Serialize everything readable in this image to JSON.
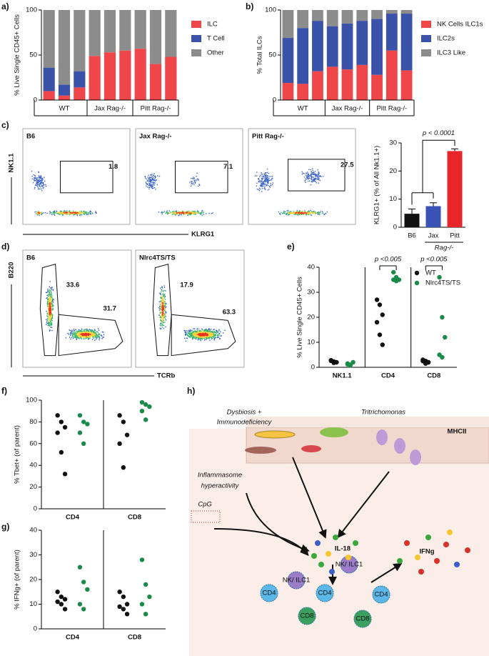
{
  "chart_data": [
    {
      "type": "stacked",
      "panel_label": "a)",
      "ylabel": "% Live Single CD45+ Cells",
      "ylim": [
        0,
        100
      ],
      "yticks": [
        0,
        50,
        100
      ],
      "categories": [
        null,
        null,
        null,
        null,
        null,
        null,
        null,
        null,
        null
      ],
      "groups": [
        "WT",
        "Jax Rag-/-",
        "Pitt Rag-/-"
      ],
      "series": [
        {
          "name": "ILC",
          "color": "#ef4649",
          "values": [
            10,
            5,
            14,
            49,
            53,
            55,
            57,
            40,
            48
          ]
        },
        {
          "name": "T Cell",
          "color": "#3a52a8",
          "values": [
            26,
            12,
            18,
            0,
            0,
            0,
            0,
            0,
            0
          ]
        },
        {
          "name": "Other",
          "color": "#8c8c8c",
          "values": [
            64,
            83,
            68,
            51,
            47,
            45,
            43,
            60,
            52
          ]
        }
      ]
    },
    {
      "type": "stacked",
      "panel_label": "b)",
      "ylabel": "% Total ILCs",
      "ylim": [
        0,
        100
      ],
      "yticks": [
        0,
        50,
        100
      ],
      "categories": [
        null,
        null,
        null,
        null,
        null,
        null,
        null,
        null,
        null
      ],
      "groups": [
        "WT",
        "Jax Rag-/-",
        "Pitt Rag-/-"
      ],
      "series": [
        {
          "name": "NK Cells ILC1s",
          "color": "#ef4649",
          "values": [
            19,
            18,
            32,
            37,
            34,
            39,
            28,
            55,
            33
          ]
        },
        {
          "name": "ILC2s",
          "color": "#3a52a8",
          "values": [
            50,
            62,
            56,
            45,
            51,
            49,
            62,
            41,
            63
          ]
        },
        {
          "name": "ILC3 Like",
          "color": "#8c8c8c",
          "values": [
            31,
            20,
            12,
            18,
            15,
            12,
            10,
            4,
            4
          ]
        }
      ]
    },
    {
      "type": "flow",
      "panel_label": "c)",
      "ylabel": "NK1.1",
      "xlabel": "KLRG1",
      "panels": [
        {
          "title": "B6",
          "gates": [
            1.8
          ]
        },
        {
          "title": "Jax Rag-/-",
          "gates": [
            7.1
          ]
        },
        {
          "title": "Pitt Rag-/-",
          "gates": [
            27.5
          ]
        }
      ]
    },
    {
      "type": "errorbar",
      "ylabel": "KLRG1+ (% of All Nk1.1+)",
      "ylim": [
        0,
        30
      ],
      "yticks": [
        0,
        10,
        20,
        30
      ],
      "categories": [
        "B6",
        "Jax",
        "Pitt"
      ],
      "group_label": "Rag-/-",
      "values": [
        4.8,
        7.5,
        27.1
      ],
      "errors": [
        1.7,
        1.2,
        0.8
      ],
      "colors": [
        "#111111",
        "#3a52b5",
        "#e8262a"
      ],
      "annotation": "p < 0.0001"
    },
    {
      "type": "flow",
      "panel_label": "d)",
      "ylabel": "B220",
      "xlabel": "TCRb",
      "panels": [
        {
          "title": "B6",
          "gates": [
            33.6,
            31.7
          ]
        },
        {
          "title": "Nlrc4TS/TS",
          "gates": [
            17.9,
            63.3
          ]
        }
      ]
    },
    {
      "type": "dot",
      "panel_label": "e)",
      "ylabel": "% Live Single CD45+ Cells",
      "ylim": [
        0,
        40
      ],
      "yticks": [
        0,
        10,
        20,
        30,
        40
      ],
      "categories": [
        "NK1.1",
        "CD4",
        "CD8"
      ],
      "annotations": [
        null,
        "p <0.005",
        "p <0.005"
      ],
      "series": [
        {
          "name": "WT",
          "color": "#111111",
          "values": [
            [
              2.8,
              2.3,
              2.0,
              2.6,
              1.8
            ],
            [
              27,
              25,
              21,
              18,
              13,
              9
            ],
            [
              3,
              2.5,
              2,
              2.5,
              1.5,
              2
            ]
          ]
        },
        {
          "name": "Nlrc4TS/TS",
          "color": "#1a8a4a",
          "values": [
            [
              1.5,
              1,
              2,
              1.2,
              0.8
            ],
            [
              38,
              36,
              35,
              35,
              34.5
            ],
            [
              36,
              20,
              12,
              5,
              4
            ]
          ]
        }
      ]
    },
    {
      "type": "dot",
      "panel_label": "f)",
      "ylabel": "% Tbet+ (of parent)",
      "ylim": [
        0,
        100
      ],
      "yticks": [
        0,
        20,
        40,
        60,
        80,
        100
      ],
      "categories": [
        "CD4",
        "CD8"
      ],
      "series": [
        {
          "name": null,
          "color": "#111111",
          "values": [
            [
              86,
              80,
              75,
              70,
              52,
              32
            ],
            [
              86,
              80,
              68,
              60,
              38
            ]
          ]
        },
        {
          "name": null,
          "color": "#1a8a4a",
          "values": [
            [
              86,
              80,
              78,
              70,
              60
            ],
            [
              98,
              96,
              94,
              90,
              82
            ]
          ]
        }
      ]
    },
    {
      "type": "dot",
      "panel_label": "g)",
      "ylabel": "% IFNg+ (of parent)",
      "ylim": [
        0,
        40
      ],
      "yticks": [
        0,
        10,
        20,
        30,
        40
      ],
      "categories": [
        "CD4",
        "CD8"
      ],
      "series": [
        {
          "name": null,
          "color": "#111111",
          "values": [
            [
              15,
              13,
              12,
              11,
              10,
              8
            ],
            [
              15,
              13,
              10,
              9,
              8,
              6
            ]
          ]
        },
        {
          "name": null,
          "color": "#1a8a4a",
          "values": [
            [
              25,
              19,
              16,
              10,
              8
            ],
            [
              28,
              18,
              13,
              10,
              6
            ]
          ]
        }
      ]
    }
  ],
  "diagram": {
    "panel_label": "h)",
    "dysbiosis": [
      "Dysbiosis +",
      "Immunodeficiency"
    ],
    "tritrichomonas": "Tritrichomonas",
    "mhcii": "MHCII",
    "inflammasome": [
      "Inflammasome",
      "hyperactivity"
    ],
    "cpg": "CpG",
    "il18": "IL-18",
    "ifng": "IFNg",
    "cells": [
      "CD4",
      "NK/ ILC1",
      "CD4",
      "NK/ ILC1",
      "CD4",
      "CD8",
      "CD8"
    ]
  }
}
